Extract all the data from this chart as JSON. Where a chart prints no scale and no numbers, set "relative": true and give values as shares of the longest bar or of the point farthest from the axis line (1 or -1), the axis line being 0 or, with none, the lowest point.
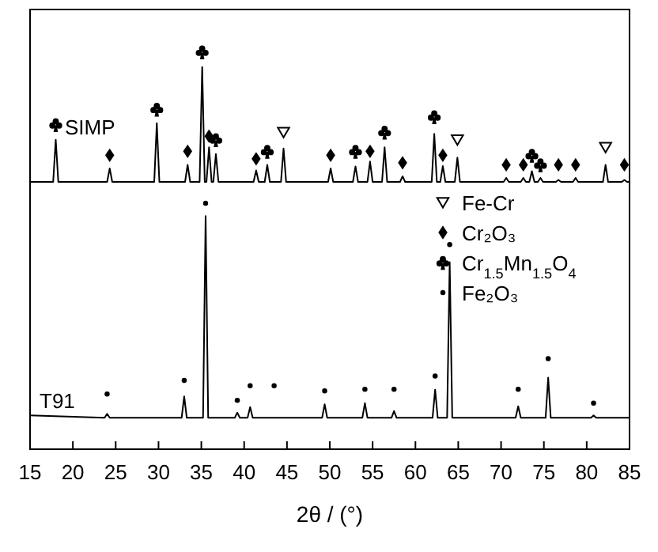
{
  "chart_data": {
    "type": "line",
    "relative": true,
    "xlabel": "2θ / (°)",
    "xlim": [
      15,
      85
    ],
    "xticks": [
      15,
      20,
      25,
      30,
      35,
      40,
      45,
      50,
      55,
      60,
      65,
      70,
      75,
      80,
      85
    ],
    "legend": "top right",
    "tick_labels": "x",
    "series": [
      {
        "name": "SIMP",
        "color": "#000000",
        "x": [
          15,
          17.7,
          18.0,
          18.3,
          24.0,
          24.3,
          24.6,
          29.5,
          29.8,
          30.1,
          33.1,
          33.4,
          33.7,
          34.8,
          35.1,
          35.4,
          35.6,
          35.9,
          36.2,
          36.4,
          36.7,
          37.0,
          41.1,
          41.4,
          41.7,
          42.4,
          42.7,
          43.0,
          44.3,
          44.6,
          44.9,
          49.8,
          50.1,
          50.4,
          52.7,
          53.0,
          53.3,
          54.4,
          54.7,
          55.0,
          56.1,
          56.4,
          56.7,
          58.2,
          58.5,
          58.8,
          61.9,
          62.2,
          62.5,
          62.9,
          63.2,
          63.5,
          64.6,
          64.9,
          65.2,
          70.3,
          70.6,
          70.9,
          72.3,
          72.6,
          72.9,
          73.3,
          73.6,
          73.9,
          74.3,
          74.6,
          74.9,
          76.4,
          76.7,
          77.0,
          78.4,
          78.7,
          79.0,
          81.9,
          82.2,
          82.5,
          84.1,
          84.4,
          84.7,
          85
        ],
        "values": [
          0.673,
          0.673,
          0.779,
          0.673,
          0.673,
          0.707,
          0.673,
          0.673,
          0.821,
          0.673,
          0.673,
          0.716,
          0.673,
          0.673,
          0.962,
          0.673,
          0.673,
          0.76,
          0.673,
          0.673,
          0.743,
          0.673,
          0.673,
          0.702,
          0.673,
          0.673,
          0.716,
          0.673,
          0.673,
          0.757,
          0.673,
          0.673,
          0.707,
          0.673,
          0.673,
          0.712,
          0.673,
          0.673,
          0.724,
          0.673,
          0.673,
          0.76,
          0.673,
          0.673,
          0.687,
          0.673,
          0.673,
          0.794,
          0.673,
          0.673,
          0.713,
          0.673,
          0.673,
          0.734,
          0.673,
          0.673,
          0.683,
          0.673,
          0.673,
          0.683,
          0.673,
          0.673,
          0.7,
          0.673,
          0.673,
          0.683,
          0.673,
          0.673,
          0.678,
          0.673,
          0.673,
          0.683,
          0.673,
          0.673,
          0.716,
          0.673,
          0.673,
          0.678,
          0.673,
          0.673
        ]
      },
      {
        "name": "T91",
        "color": "#000000",
        "x": [
          15,
          23.7,
          24.0,
          24.3,
          32.7,
          33.0,
          33.3,
          35.2,
          35.5,
          35.8,
          38.9,
          39.2,
          39.5,
          40.4,
          40.7,
          41.0,
          49.1,
          49.4,
          49.7,
          53.8,
          54.1,
          54.4,
          57.2,
          57.5,
          57.8,
          62.0,
          62.3,
          62.6,
          63.7,
          64.0,
          64.3,
          71.7,
          72.0,
          72.3,
          75.2,
          75.5,
          75.8,
          80.5,
          80.8,
          81.1,
          85
        ],
        "values": [
          0.085,
          0.079,
          0.089,
          0.079,
          0.079,
          0.133,
          0.079,
          0.079,
          0.587,
          0.079,
          0.079,
          0.092,
          0.079,
          0.079,
          0.106,
          0.079,
          0.079,
          0.113,
          0.079,
          0.079,
          0.116,
          0.079,
          0.079,
          0.096,
          0.079,
          0.079,
          0.15,
          0.079,
          0.079,
          0.471,
          0.079,
          0.079,
          0.108,
          0.079,
          0.079,
          0.18,
          0.079,
          0.079,
          0.085,
          0.079,
          0.079
        ]
      },
      {
        "name": "Fe-Cr",
        "type": "scatter",
        "color": "#000000",
        "marker": "triangle",
        "x": [
          44.6,
          64.9,
          82.2
        ],
        "values": [
          0.798,
          0.779,
          0.76
        ]
      },
      {
        "name": "Cr₂O₃",
        "type": "scatter",
        "color": "#000000",
        "marker": "diamond",
        "x": [
          24.3,
          33.4,
          35.9,
          41.4,
          50.1,
          54.7,
          58.5,
          63.2,
          70.6,
          72.6,
          76.7,
          78.7,
          84.4
        ],
        "values": [
          0.74,
          0.75,
          0.788,
          0.731,
          0.74,
          0.75,
          0.721,
          0.74,
          0.716,
          0.716,
          0.716,
          0.716,
          0.716
        ]
      },
      {
        "name": "Cr$_{1.5}$Mn$_{1.5}$O$_{4}$",
        "type": "scatter",
        "color": "#000000",
        "x": [
          18.0,
          29.8,
          35.1,
          36.7,
          42.7,
          53.0,
          56.4,
          62.2,
          73.6,
          74.6
        ],
        "values": [
          0.817,
          0.856,
          1.0,
          0.779,
          0.75,
          0.75,
          0.798,
          0.837,
          0.74,
          0.716
        ]
      },
      {
        "name": "Fe₂O₃",
        "type": "scatter",
        "color": "#000000",
        "marker": "circle",
        "x": [
          24.0,
          33.0,
          35.5,
          39.2,
          40.7,
          43.5,
          49.4,
          54.1,
          57.5,
          62.3,
          64.0,
          72.0,
          75.5,
          80.8
        ],
        "values": [
          0.139,
          0.173,
          0.619,
          0.123,
          0.16,
          0.16,
          0.147,
          0.151,
          0.151,
          0.184,
          0.515,
          0.151,
          0.228,
          0.116
        ]
      }
    ]
  }
}
